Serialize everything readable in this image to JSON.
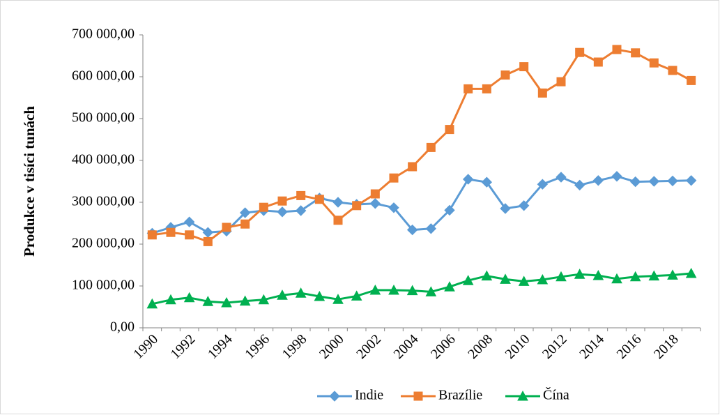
{
  "chart_data": {
    "type": "line",
    "y_label": "Produkce v tisíci tunách",
    "categories": [
      "1990",
      null,
      "1992",
      null,
      "1994",
      null,
      "1996",
      null,
      "1998",
      null,
      "2000",
      null,
      "2002",
      null,
      "2004",
      null,
      "2006",
      null,
      "2008",
      null,
      "2010",
      null,
      "2012",
      null,
      "2014",
      null,
      "2016",
      null,
      "2018",
      null
    ],
    "series": [
      {
        "name": "Indie",
        "color": "#5b9bd5",
        "marker": "diamond",
        "values": [
          226000,
          240000,
          253000,
          228000,
          231000,
          275000,
          280000,
          277000,
          280000,
          310000,
          300000,
          295000,
          297000,
          287000,
          234000,
          237000,
          281000,
          355000,
          348000,
          285000,
          292000,
          343000,
          360000,
          341000,
          352000,
          362000,
          349000,
          350000,
          351000,
          352000
        ]
      },
      {
        "name": "Brazílie",
        "color": "#ed7d31",
        "marker": "square",
        "values": [
          222000,
          228000,
          222000,
          206000,
          240000,
          248000,
          288000,
          303000,
          316000,
          307000,
          257000,
          292000,
          320000,
          358000,
          385000,
          431000,
          474000,
          571000,
          571000,
          604000,
          624000,
          561000,
          588000,
          658000,
          635000,
          665000,
          657000,
          633000,
          615000,
          591000
        ]
      },
      {
        "name": "Čína",
        "color": "#00b050",
        "marker": "triangle",
        "values": [
          57000,
          67000,
          72000,
          63000,
          60000,
          64000,
          67000,
          78000,
          83000,
          75000,
          68000,
          76000,
          90000,
          90000,
          89000,
          86000,
          98000,
          113000,
          124000,
          116000,
          111000,
          115000,
          122000,
          128000,
          125000,
          117000,
          122000,
          124000,
          126000,
          130000
        ]
      }
    ],
    "ylim": [
      0,
      700000
    ],
    "yticks": [
      {
        "value": 0,
        "label": "0,00"
      },
      {
        "value": 100000,
        "label": "100 000,00"
      },
      {
        "value": 200000,
        "label": "200 000,00"
      },
      {
        "value": 300000,
        "label": "300 000,00"
      },
      {
        "value": 400000,
        "label": "400 000,00"
      },
      {
        "value": 500000,
        "label": "500 000,00"
      },
      {
        "value": 600000,
        "label": "600 000,00"
      },
      {
        "value": 700000,
        "label": "700 000,00"
      }
    ],
    "grid": false,
    "legend": "bottom"
  }
}
